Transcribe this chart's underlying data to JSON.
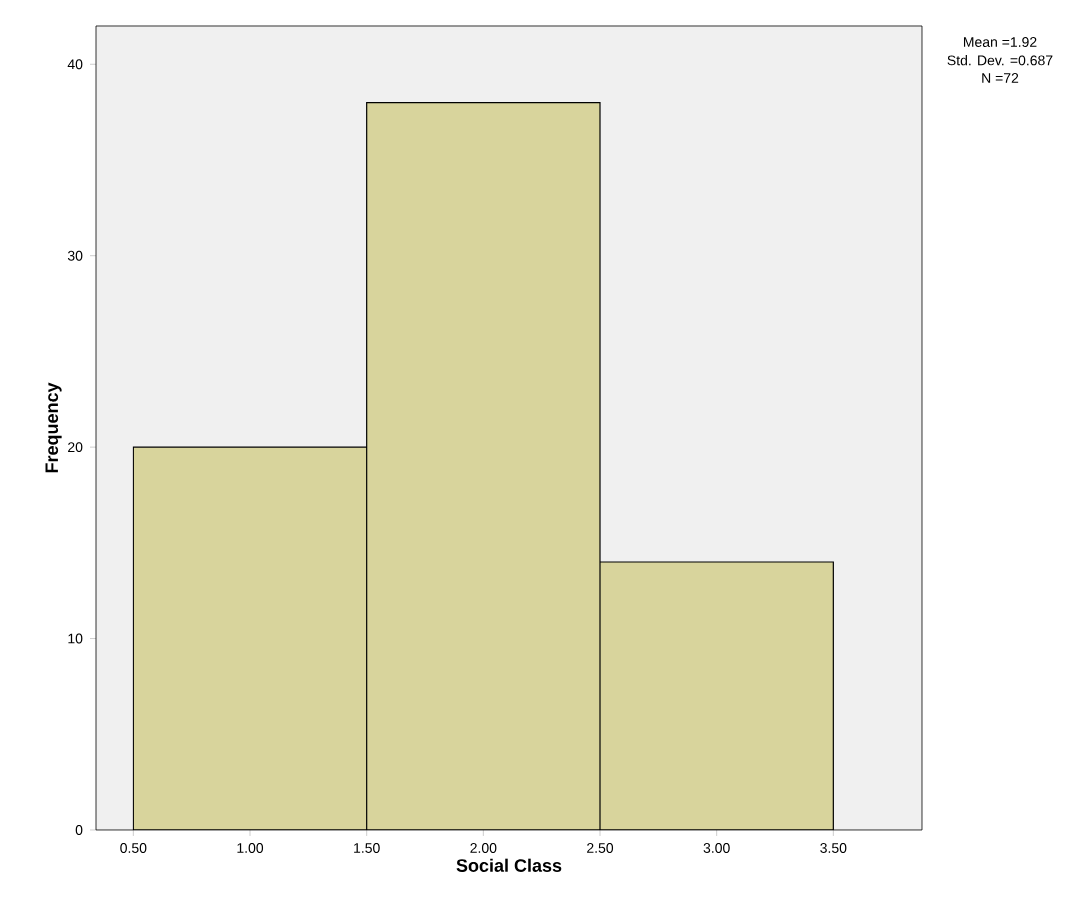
{
  "chart_data": {
    "type": "histogram",
    "xlabel": "Social Class",
    "ylabel": "Frequency",
    "bins": [
      0.5,
      1.5,
      2.5,
      3.5
    ],
    "values": [
      20,
      38,
      14
    ],
    "color": "#d8d49c",
    "xlim": [
      0.34,
      3.88
    ],
    "ylim": [
      0,
      42
    ],
    "xticks": [
      {
        "value": 0.5,
        "label": "0.50"
      },
      {
        "value": 1.0,
        "label": "1.00"
      },
      {
        "value": 1.5,
        "label": "1.50"
      },
      {
        "value": 2.0,
        "label": "2.00"
      },
      {
        "value": 2.5,
        "label": "2.50"
      },
      {
        "value": 3.0,
        "label": "3.00"
      },
      {
        "value": 3.5,
        "label": "3.50"
      }
    ],
    "yticks": [
      0,
      10,
      20,
      30,
      40
    ],
    "annotations": [
      "Mean =1.92",
      "Std. Dev. =0.687",
      "N =72"
    ]
  }
}
